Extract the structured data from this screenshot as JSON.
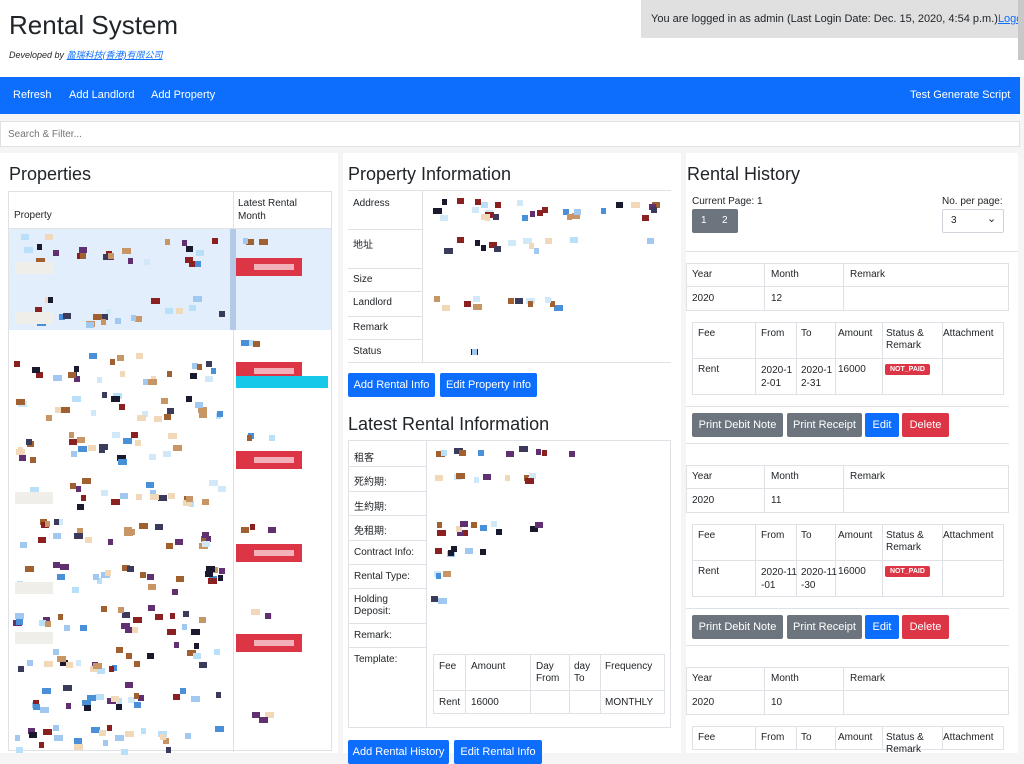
{
  "header": {
    "title": "Rental System",
    "developed_by": "Developed by",
    "company": "盈瑞科技(香港)有限公司",
    "login_text": "You are logged in as admin (Last Login Date: Dec. 15, 2020, 4:54 p.m.)",
    "logout": "Logout"
  },
  "nav": {
    "refresh": "Refresh",
    "add_landlord": "Add Landlord",
    "add_property": "Add Property",
    "test_script": "Test Generate Script"
  },
  "search": {
    "placeholder": "Search & Filter..."
  },
  "properties": {
    "title": "Properties",
    "col_property": "Property",
    "col_latest": "Latest Rental Month"
  },
  "property_info": {
    "title": "Property Information",
    "labels": {
      "address": "Address",
      "address_zh": "地址",
      "size": "Size",
      "landlord": "Landlord",
      "remark": "Remark",
      "status": "Status"
    },
    "add_rental_info": "Add Rental Info",
    "edit_property_info": "Edit Property Info"
  },
  "latest_rental": {
    "title": "Latest Rental Information",
    "labels": {
      "tenant": "租客",
      "fixed_term": "死約期:",
      "flexible_term": "生約期:",
      "rent_free": "免租期:",
      "contract": "Contract Info:",
      "rental_type": "Rental Type:",
      "holding_deposit": "Holding Deposit:",
      "remark": "Remark:",
      "template": "Template:"
    },
    "template": {
      "headers": {
        "fee": "Fee",
        "amount": "Amount",
        "day_from": "Day From",
        "day_to": "day To",
        "frequency": "Frequency"
      },
      "row": {
        "fee": "Rent",
        "amount": "16000",
        "frequency": "MONTHLY"
      }
    },
    "add_history": "Add Rental History",
    "edit_rental": "Edit Rental Info"
  },
  "history": {
    "title": "Rental History",
    "current_page": "Current Page: 1",
    "pages": [
      "1",
      "2"
    ],
    "per_page_label": "No. per page:",
    "per_page_value": "3",
    "headers": {
      "year": "Year",
      "month": "Month",
      "remark": "Remark"
    },
    "fee_headers": {
      "fee": "Fee",
      "from": "From",
      "to": "To",
      "amount": "Amount",
      "status": "Status & Remark",
      "attachment": "Attachment"
    },
    "buttons": {
      "debit": "Print Debit Note",
      "receipt": "Print Receipt",
      "edit": "Edit",
      "delete": "Delete"
    },
    "records": [
      {
        "year": "2020",
        "month": "12",
        "fee": "Rent",
        "from": "2020-12-01",
        "to": "2020-12-31",
        "amount": "16000",
        "status": "NOT_PAID"
      },
      {
        "year": "2020",
        "month": "11",
        "fee": "Rent",
        "from": "2020-11-01",
        "to": "2020-11-30",
        "amount": "16000",
        "status": "NOT_PAID"
      },
      {
        "year": "2020",
        "month": "10"
      }
    ]
  },
  "colors": {
    "primary": "#0d6efd",
    "secondary": "#6c757d",
    "danger": "#dc3545",
    "selected_row": "#e3eefc"
  }
}
